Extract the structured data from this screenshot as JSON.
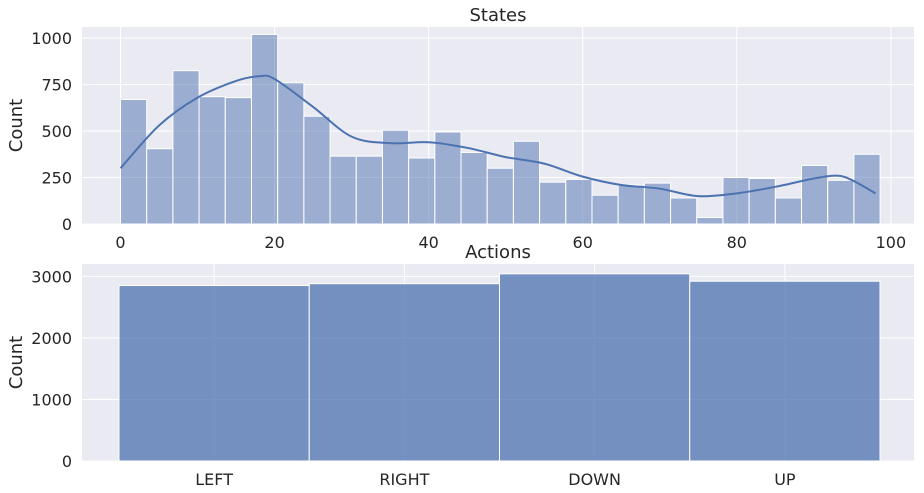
{
  "chart_data": [
    {
      "type": "bar",
      "subtype": "histogram_with_kde",
      "title": "States",
      "xlabel": "",
      "ylabel": "Count",
      "xlim": [
        -5,
        103
      ],
      "ylim": [
        0,
        1060
      ],
      "bin_width": 3.4,
      "bin_start": 0,
      "xticks": [
        0,
        20,
        40,
        60,
        80,
        100
      ],
      "yticks": [
        0,
        250,
        500,
        750,
        1000
      ],
      "values": [
        670,
        405,
        825,
        685,
        680,
        1020,
        760,
        580,
        365,
        365,
        505,
        355,
        495,
        385,
        300,
        445,
        225,
        240,
        155,
        210,
        220,
        140,
        35,
        250,
        245,
        140,
        315,
        235,
        375
      ],
      "kde": {
        "x": [
          0,
          5,
          10,
          15,
          18,
          20,
          25,
          30,
          35,
          40,
          45,
          50,
          55,
          60,
          65,
          70,
          75,
          80,
          85,
          90,
          93,
          95,
          98
        ],
        "y": [
          300,
          530,
          680,
          770,
          795,
          780,
          630,
          470,
          435,
          440,
          410,
          360,
          325,
          255,
          210,
          190,
          150,
          165,
          200,
          245,
          260,
          235,
          165
        ]
      },
      "colors": {
        "bar": "#4c72b0",
        "line": "#4c72b0"
      },
      "grid": true
    },
    {
      "type": "bar",
      "title": "Actions",
      "xlabel": "",
      "ylabel": "Count",
      "categories": [
        "LEFT",
        "RIGHT",
        "DOWN",
        "UP"
      ],
      "values": [
        2850,
        2880,
        3040,
        2920
      ],
      "yticks": [
        0,
        1000,
        2000,
        3000
      ],
      "ylim": [
        0,
        3200
      ],
      "colors": {
        "bar": "#4c72b0"
      },
      "grid": true
    }
  ]
}
